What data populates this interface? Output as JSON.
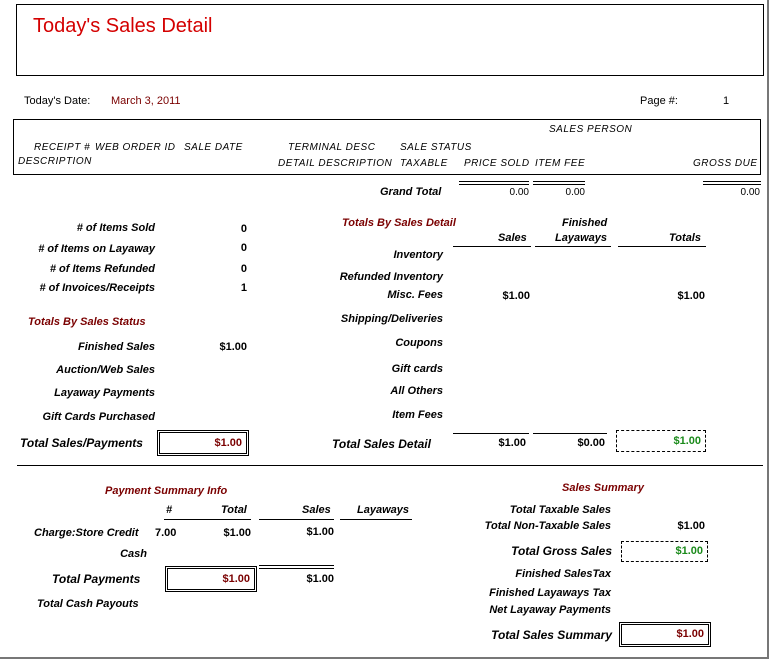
{
  "report": {
    "title": "Today's Sales Detail",
    "date_label": "Today's Date:",
    "date_value": "March 3, 2011",
    "page_label": "Page #:",
    "page_value": "1"
  },
  "columns": {
    "sales_person": "SALES PERSON",
    "receipt": "RECEIPT #",
    "web_order_id": "WEB ORDER ID",
    "sale_date": "SALE DATE",
    "terminal_desc": "TERMINAL DESC",
    "sale_status": "SALE STATUS",
    "description": "DESCRIPTION",
    "detail_description": "DETAIL DESCRIPTION",
    "taxable": "TAXABLE",
    "price_sold": "PRICE SOLD",
    "item_fee": "ITEM FEE",
    "gross_due": "GROSS DUE"
  },
  "grand_total": {
    "label": "Grand Total",
    "price_sold": "0.00",
    "item_fee": "0.00",
    "gross_due": "0.00"
  },
  "counts": [
    {
      "label": "# of Items Sold",
      "value": "0"
    },
    {
      "label": "# of Items on Layaway",
      "value": "0"
    },
    {
      "label": "# of Items Refunded",
      "value": "0"
    },
    {
      "label": "# of Invoices/Receipts",
      "value": "1"
    }
  ],
  "status": {
    "heading": "Totals By Sales Status",
    "rows": [
      {
        "label": "Finished Sales",
        "value": "$1.00"
      },
      {
        "label": "Auction/Web Sales",
        "value": ""
      },
      {
        "label": "Layaway Payments",
        "value": ""
      },
      {
        "label": "Gift Cards Purchased",
        "value": ""
      }
    ],
    "total_label": "Total Sales/Payments",
    "total_value": "$1.00"
  },
  "detail": {
    "heading": "Totals By Sales Detail",
    "col_sales": "Sales",
    "col_finished_1": "Finished",
    "col_finished_2": "Layaways",
    "col_totals": "Totals",
    "rows": [
      {
        "label": "Inventory",
        "sales": "",
        "layaways": "",
        "totals": ""
      },
      {
        "label": "Refunded Inventory",
        "sales": "",
        "layaways": "",
        "totals": ""
      },
      {
        "label": "Misc. Fees",
        "sales": "$1.00",
        "layaways": "",
        "totals": "$1.00"
      },
      {
        "label": "Shipping/Deliveries",
        "sales": "",
        "layaways": "",
        "totals": ""
      },
      {
        "label": "Coupons",
        "sales": "",
        "layaways": "",
        "totals": ""
      },
      {
        "label": "Gift cards",
        "sales": "",
        "layaways": "",
        "totals": ""
      },
      {
        "label": "All Others",
        "sales": "",
        "layaways": "",
        "totals": ""
      },
      {
        "label": "Item Fees",
        "sales": "",
        "layaways": "",
        "totals": ""
      }
    ],
    "total_label": "Total Sales Detail",
    "total_sales": "$1.00",
    "total_layaways": "$0.00",
    "total_totals": "$1.00"
  },
  "payment": {
    "heading": "Payment Summary Info",
    "col_num": "#",
    "col_total": "Total",
    "col_sales": "Sales",
    "col_layaways": "Layaways",
    "rows": [
      {
        "label": "Charge:Store Credit",
        "num": "7.00",
        "total": "$1.00",
        "sales": "$1.00",
        "layaways": ""
      },
      {
        "label": "Cash",
        "num": "",
        "total": "",
        "sales": "",
        "layaways": ""
      }
    ],
    "total_label": "Total Payments",
    "total_value": "$1.00",
    "total_sales": "$1.00",
    "cash_payouts_label": "Total Cash Payouts"
  },
  "summary": {
    "heading": "Sales Summary",
    "taxable_label": "Total Taxable Sales",
    "taxable_value": "",
    "nontaxable_label": "Total Non-Taxable Sales",
    "nontaxable_value": "$1.00",
    "gross_label": "Total Gross Sales",
    "gross_value": "$1.00",
    "finished_tax_label": "Finished SalesTax",
    "layaway_tax_label": "Finished Layaways Tax",
    "net_layaway_label": "Net Layaway Payments",
    "total_label": "Total Sales Summary",
    "total_value": "$1.00"
  },
  "colors": {
    "title": "#d40000",
    "dark_red": "#7a0000",
    "green": "#1a8a1a"
  }
}
